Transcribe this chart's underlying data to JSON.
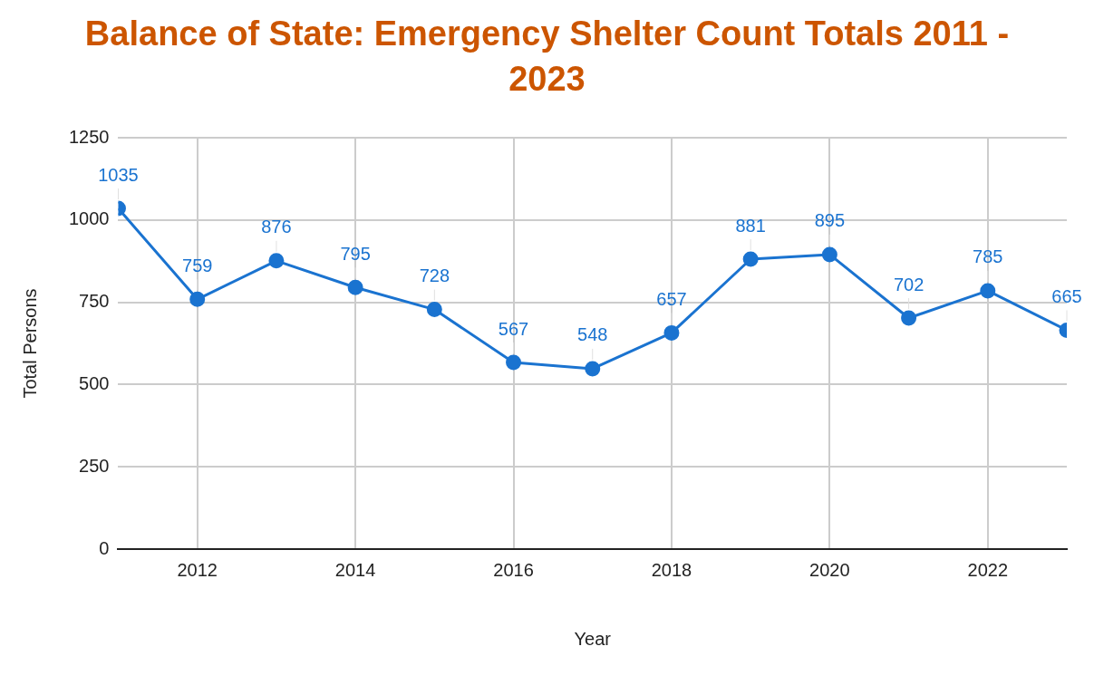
{
  "chart_data": {
    "type": "line",
    "title": "Balance of State: Emergency Shelter Count Totals 2011 - 2023",
    "xlabel": "Year",
    "ylabel": "Total Persons",
    "x": [
      2011,
      2012,
      2013,
      2014,
      2015,
      2016,
      2017,
      2018,
      2019,
      2020,
      2021,
      2022,
      2023
    ],
    "series": [
      {
        "color": "#1a73d0",
        "values": [
          1035,
          759,
          876,
          795,
          728,
          567,
          548,
          657,
          881,
          895,
          702,
          785,
          665
        ]
      }
    ],
    "xlim": [
      2011,
      2023
    ],
    "xticks": [
      2012,
      2014,
      2016,
      2018,
      2020,
      2022
    ],
    "ylim": [
      0,
      1250
    ],
    "yticks": [
      0,
      250,
      500,
      750,
      1000,
      1250
    ],
    "grid": true,
    "legend": false,
    "marker": "circle",
    "line_style": "solid",
    "data_labels": true
  }
}
